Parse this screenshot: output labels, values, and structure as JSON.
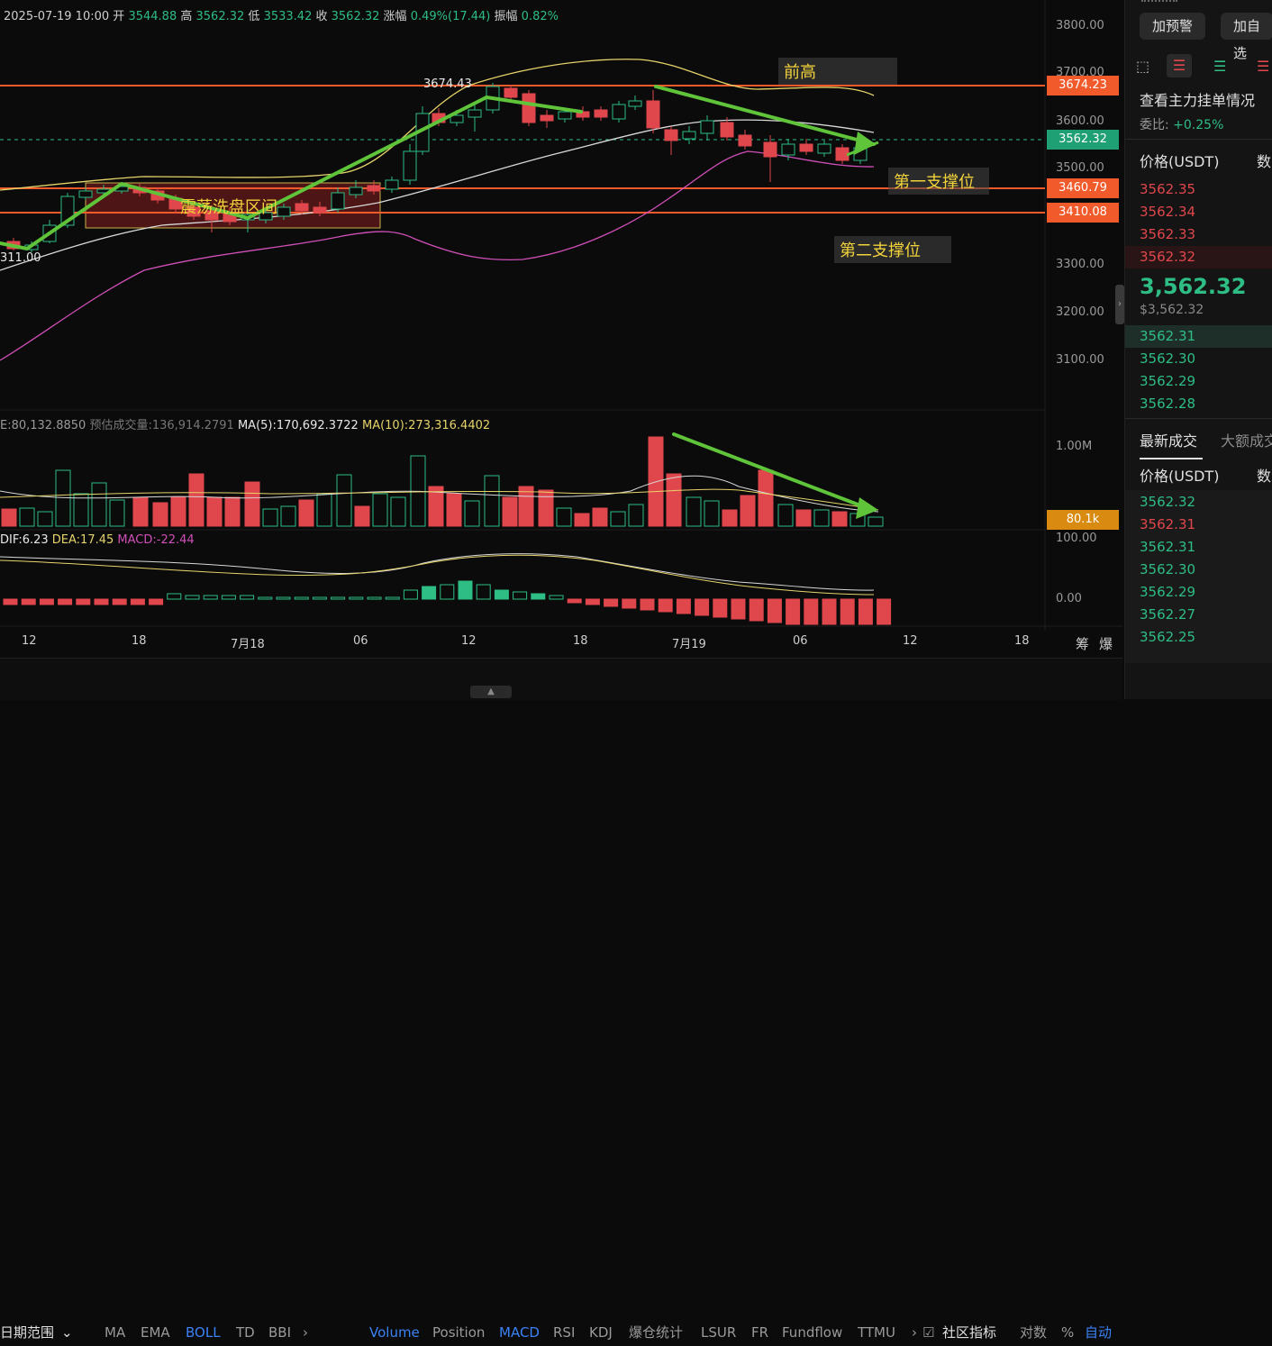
{
  "header": {
    "date": "2025-07-19 10:00",
    "open_label": "开",
    "open": "3544.88",
    "high_label": "高",
    "high": "3562.32",
    "low_label": "低",
    "low": "3533.42",
    "close_label": "收",
    "close": "3562.32",
    "change_label": "涨幅",
    "change": "0.49%(17.44)",
    "amplitude_label": "振幅",
    "amplitude": "0.82%"
  },
  "price_axis": [
    "3800.00",
    "3700.00",
    "3600.00",
    "3500.00",
    "3300.00",
    "3200.00",
    "3100.00"
  ],
  "price_tags": {
    "resistance": "3674.23",
    "current": "3562.32",
    "support1": "3460.79",
    "support2": "3410.08"
  },
  "chart_labels": {
    "peak_value": "3674.43",
    "low_value": "311.00",
    "prev_high": "前高",
    "consolidation": "震荡洗盘区间",
    "support1": "第一支撑位",
    "support2": "第二支撑位"
  },
  "volume": {
    "vol_label": "E:80,132.8850",
    "est_label": "预估成交量:136,914.2791",
    "ma5": "MA(5):170,692.3722",
    "ma10": "MA(10):273,316.4402",
    "axis_top": "1.00M",
    "current_tag": "80.1k"
  },
  "macd": {
    "dif": "DIF:6.23",
    "dea": "DEA:17.45",
    "macd": "MACD:-22.44",
    "axis_top": "100.00",
    "axis_zero": "0.00"
  },
  "time_axis": [
    "12",
    "18",
    "7月18",
    "06",
    "12",
    "18",
    "7月19",
    "06",
    "12",
    "18"
  ],
  "time_axis_right": [
    "筹",
    "爆"
  ],
  "toolbar": {
    "range": "日期范围",
    "main_indicators": [
      "MA",
      "EMA",
      "BOLL",
      "TD",
      "BBI"
    ],
    "sub_indicators": [
      "Volume",
      "Position",
      "MACD",
      "RSI",
      "KDJ",
      "爆仓统计",
      "LSUR",
      "FR",
      "Fundflow",
      "TTMU"
    ],
    "community": "社区指标",
    "log_scale": "对数",
    "percent": "%",
    "auto": "自动"
  },
  "right_panel": {
    "btn_alert": "加预警",
    "btn_watch": "加自选",
    "orderbook_title": "查看主力挂单情况",
    "commission_label": "委比:",
    "commission_value": "+0.25%",
    "col_price": "价格(USDT)",
    "col_qty": "数",
    "asks": [
      "3562.35",
      "3562.34",
      "3562.33",
      "3562.32"
    ],
    "last_price": "3,562.32",
    "last_price_usd": "$3,562.32",
    "bids": [
      "3562.31",
      "3562.30",
      "3562.29",
      "3562.28"
    ],
    "trades_tab": "最新成交",
    "big_trades_tab": "大额成交",
    "trades": [
      {
        "p": "3562.32",
        "side": "buy"
      },
      {
        "p": "3562.31",
        "side": "sell"
      },
      {
        "p": "3562.31",
        "side": "buy"
      },
      {
        "p": "3562.30",
        "side": "buy"
      },
      {
        "p": "3562.29",
        "side": "buy"
      },
      {
        "p": "3562.27",
        "side": "buy"
      },
      {
        "p": "3562.25",
        "side": "buy"
      }
    ]
  },
  "colors": {
    "up": "#2ebd85",
    "down": "#e0474c",
    "boll_upper": "#e6d36a",
    "boll_mid": "#d8d8d8",
    "boll_lower": "#d04fb8",
    "resistance_line": "#f15a2a",
    "arrow": "#5fc43a"
  }
}
